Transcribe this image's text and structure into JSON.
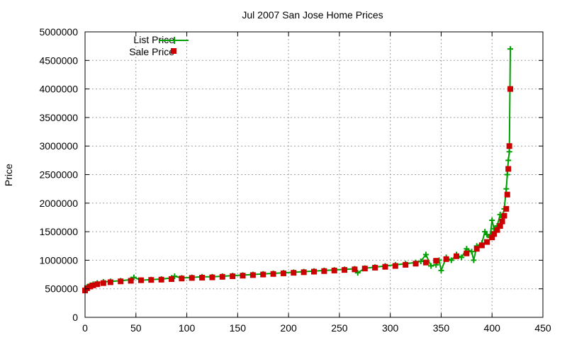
{
  "chart_data": {
    "type": "line",
    "title": "Jul 2007 San Jose Home Prices",
    "xlabel": "",
    "ylabel": "Price",
    "xlim": [
      0,
      450
    ],
    "ylim": [
      0,
      5000000
    ],
    "xticks": [
      0,
      50,
      100,
      150,
      200,
      250,
      300,
      350,
      400,
      450
    ],
    "yticks": [
      0,
      500000,
      1000000,
      1500000,
      2000000,
      2500000,
      3000000,
      3500000,
      4000000,
      4500000,
      5000000
    ],
    "grid": true,
    "legend_position": "top-left",
    "series": [
      {
        "name": "List Price",
        "style": "line-with-plus-markers",
        "color": "#00a000",
        "x": [
          0,
          2,
          5,
          8,
          12,
          18,
          25,
          35,
          45,
          48,
          55,
          65,
          75,
          85,
          88,
          95,
          105,
          115,
          125,
          135,
          145,
          155,
          165,
          175,
          185,
          195,
          205,
          215,
          225,
          235,
          245,
          255,
          265,
          268,
          275,
          285,
          295,
          305,
          315,
          325,
          330,
          335,
          340,
          345,
          348,
          350,
          355,
          360,
          365,
          370,
          375,
          380,
          382,
          385,
          390,
          393,
          395,
          398,
          400,
          402,
          405,
          408,
          410,
          412,
          414,
          415,
          416,
          417,
          418
        ],
        "values": [
          480000,
          530000,
          560000,
          580000,
          600000,
          620000,
          630000,
          640000,
          660000,
          700000,
          650000,
          660000,
          670000,
          690000,
          720000,
          690000,
          700000,
          710000,
          710000,
          720000,
          730000,
          740000,
          750000,
          760000,
          770000,
          780000,
          790000,
          800000,
          810000,
          820000,
          830000,
          840000,
          850000,
          780000,
          860000,
          880000,
          900000,
          920000,
          940000,
          960000,
          980000,
          1100000,
          900000,
          920000,
          1000000,
          820000,
          1050000,
          1000000,
          1100000,
          1050000,
          1200000,
          1150000,
          1000000,
          1250000,
          1300000,
          1500000,
          1450000,
          1400000,
          1700000,
          1550000,
          1600000,
          1800000,
          1750000,
          1900000,
          2250000,
          2500000,
          2750000,
          2900000,
          4700000
        ]
      },
      {
        "name": "Sale Price",
        "style": "square-markers",
        "color": "#cc0000",
        "x": [
          0,
          2,
          5,
          8,
          12,
          18,
          25,
          35,
          45,
          55,
          65,
          75,
          85,
          95,
          105,
          115,
          125,
          135,
          145,
          155,
          165,
          175,
          185,
          195,
          205,
          215,
          225,
          235,
          245,
          255,
          265,
          275,
          285,
          295,
          305,
          315,
          325,
          335,
          345,
          355,
          365,
          375,
          385,
          390,
          395,
          400,
          402,
          405,
          408,
          410,
          412,
          414,
          415,
          416,
          417,
          418
        ],
        "values": [
          470000,
          510000,
          540000,
          560000,
          580000,
          600000,
          615000,
          630000,
          640000,
          650000,
          655000,
          660000,
          670000,
          680000,
          690000,
          695000,
          700000,
          710000,
          720000,
          730000,
          740000,
          750000,
          760000,
          770000,
          780000,
          790000,
          800000,
          810000,
          820000,
          830000,
          840000,
          855000,
          870000,
          885000,
          900000,
          920000,
          940000,
          960000,
          990000,
          1020000,
          1070000,
          1120000,
          1200000,
          1260000,
          1320000,
          1400000,
          1460000,
          1530000,
          1600000,
          1680000,
          1780000,
          1900000,
          2150000,
          2600000,
          3000000,
          4000000
        ]
      }
    ]
  }
}
